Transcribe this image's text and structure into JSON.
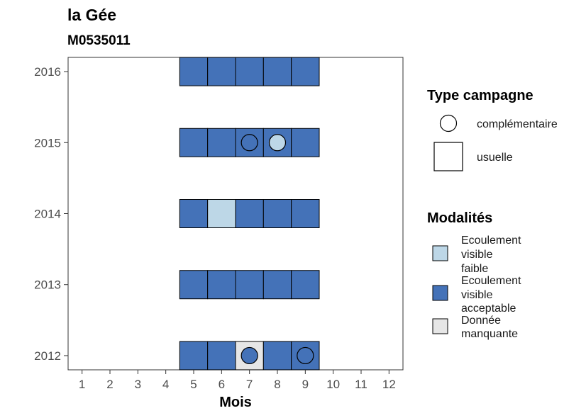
{
  "chart_data": {
    "type": "heatmap",
    "title": "la Gée",
    "subtitle": "M0535011",
    "xlabel": "Mois",
    "ylabel": "",
    "x_ticks": [
      1,
      2,
      3,
      4,
      5,
      6,
      7,
      8,
      9,
      10,
      11,
      12
    ],
    "y_ticks": [
      2012,
      2013,
      2014,
      2015,
      2016
    ],
    "xlim": [
      0.5,
      12.5
    ],
    "ylim": [
      2011.8,
      2016.2
    ],
    "colors": {
      "Ecoulement visible faible": "#bdd7e7",
      "Ecoulement visible acceptable": "#4472b8",
      "Donnée manquante": "#e6e6e6"
    },
    "cells": [
      {
        "year": 2016,
        "month": 5,
        "modalite": "Ecoulement visible acceptable",
        "campagne": "usuelle"
      },
      {
        "year": 2016,
        "month": 6,
        "modalite": "Ecoulement visible acceptable",
        "campagne": "usuelle"
      },
      {
        "year": 2016,
        "month": 7,
        "modalite": "Ecoulement visible acceptable",
        "campagne": "usuelle"
      },
      {
        "year": 2016,
        "month": 8,
        "modalite": "Ecoulement visible acceptable",
        "campagne": "usuelle"
      },
      {
        "year": 2016,
        "month": 9,
        "modalite": "Ecoulement visible acceptable",
        "campagne": "usuelle"
      },
      {
        "year": 2015,
        "month": 5,
        "modalite": "Ecoulement visible acceptable",
        "campagne": "usuelle"
      },
      {
        "year": 2015,
        "month": 6,
        "modalite": "Ecoulement visible acceptable",
        "campagne": "usuelle"
      },
      {
        "year": 2015,
        "month": 7,
        "modalite": "Ecoulement visible acceptable",
        "campagne": "usuelle"
      },
      {
        "year": 2015,
        "month": 8,
        "modalite": "Ecoulement visible acceptable",
        "campagne": "usuelle"
      },
      {
        "year": 2015,
        "month": 9,
        "modalite": "Ecoulement visible acceptable",
        "campagne": "usuelle"
      },
      {
        "year": 2014,
        "month": 5,
        "modalite": "Ecoulement visible acceptable",
        "campagne": "usuelle"
      },
      {
        "year": 2014,
        "month": 6,
        "modalite": "Ecoulement visible faible",
        "campagne": "usuelle"
      },
      {
        "year": 2014,
        "month": 7,
        "modalite": "Ecoulement visible acceptable",
        "campagne": "usuelle"
      },
      {
        "year": 2014,
        "month": 8,
        "modalite": "Ecoulement visible acceptable",
        "campagne": "usuelle"
      },
      {
        "year": 2014,
        "month": 9,
        "modalite": "Ecoulement visible acceptable",
        "campagne": "usuelle"
      },
      {
        "year": 2013,
        "month": 5,
        "modalite": "Ecoulement visible acceptable",
        "campagne": "usuelle"
      },
      {
        "year": 2013,
        "month": 6,
        "modalite": "Ecoulement visible acceptable",
        "campagne": "usuelle"
      },
      {
        "year": 2013,
        "month": 7,
        "modalite": "Ecoulement visible acceptable",
        "campagne": "usuelle"
      },
      {
        "year": 2013,
        "month": 8,
        "modalite": "Ecoulement visible acceptable",
        "campagne": "usuelle"
      },
      {
        "year": 2013,
        "month": 9,
        "modalite": "Ecoulement visible acceptable",
        "campagne": "usuelle"
      },
      {
        "year": 2012,
        "month": 5,
        "modalite": "Ecoulement visible acceptable",
        "campagne": "usuelle"
      },
      {
        "year": 2012,
        "month": 6,
        "modalite": "Ecoulement visible acceptable",
        "campagne": "usuelle"
      },
      {
        "year": 2012,
        "month": 7,
        "modalite": "Donnée manquante",
        "campagne": "usuelle"
      },
      {
        "year": 2012,
        "month": 8,
        "modalite": "Ecoulement visible acceptable",
        "campagne": "usuelle"
      },
      {
        "year": 2012,
        "month": 9,
        "modalite": "Ecoulement visible acceptable",
        "campagne": "usuelle"
      }
    ],
    "points": [
      {
        "year": 2015,
        "month": 7,
        "modalite": "Ecoulement visible acceptable",
        "campagne": "complémentaire"
      },
      {
        "year": 2015,
        "month": 8,
        "modalite": "Ecoulement visible faible",
        "campagne": "complémentaire"
      },
      {
        "year": 2012,
        "month": 7,
        "modalite": "Ecoulement visible acceptable",
        "campagne": "complémentaire"
      },
      {
        "year": 2012,
        "month": 9,
        "modalite": "Ecoulement visible acceptable",
        "campagne": "complémentaire"
      }
    ],
    "legend_placement": "right",
    "legend": {
      "type_campagne": {
        "title": "Type campagne",
        "items": [
          {
            "label": "complémentaire",
            "shape": "circle"
          },
          {
            "label": "usuelle",
            "shape": "square"
          }
        ]
      },
      "modalites": {
        "title": "Modalités",
        "items": [
          {
            "lines": [
              "Ecoulement",
              "visible",
              "faible"
            ],
            "key": "Ecoulement visible faible"
          },
          {
            "lines": [
              "Ecoulement",
              "visible",
              "acceptable"
            ],
            "key": "Ecoulement visible acceptable"
          },
          {
            "lines": [
              "Donnée",
              "manquante"
            ],
            "key": "Donnée manquante"
          }
        ]
      }
    }
  }
}
